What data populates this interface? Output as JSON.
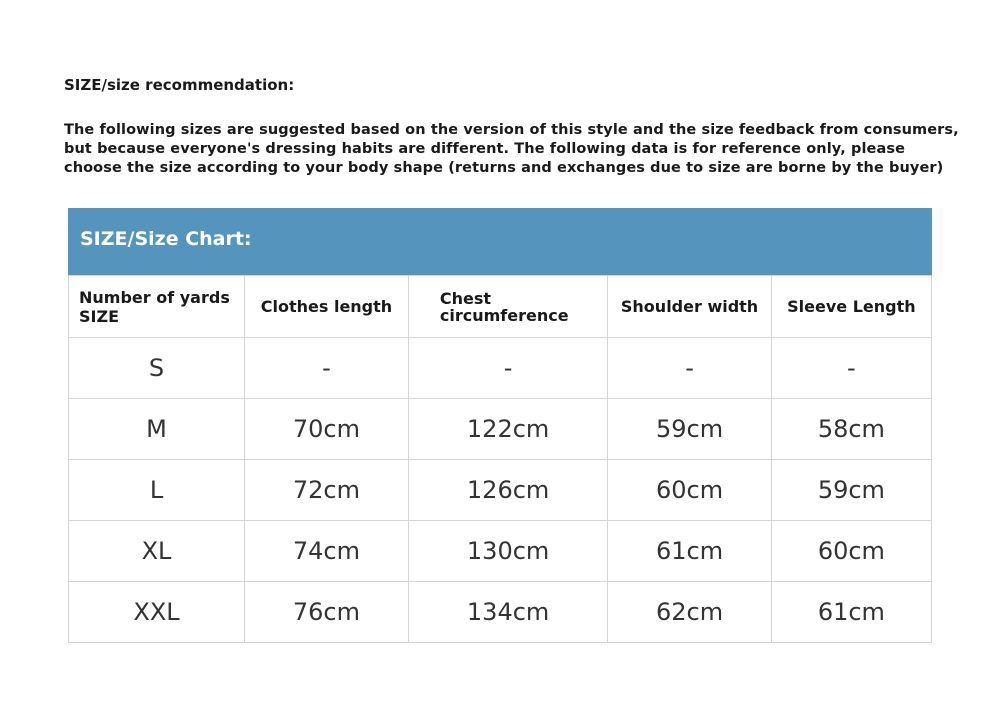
{
  "heading": "SIZE/size recommendation:",
  "paragraph": "The following sizes are suggested based on the version of this style and the size feedback from consumers, but because everyone's dressing habits are different. The following data is for reference only, please choose the size according to your body shape (returns and exchanges due to size are borne by the buyer)",
  "table": {
    "title": "SIZE/Size Chart:",
    "header_color": "#5595bd",
    "columns": [
      "Number of yards SIZE",
      "Clothes length",
      "Chest circumference",
      "Shoulder width",
      "Sleeve Length"
    ],
    "rows": [
      [
        "S",
        "-",
        "-",
        "-",
        "-"
      ],
      [
        "M",
        "70cm",
        "122cm",
        "59cm",
        "58cm"
      ],
      [
        "L",
        "72cm",
        "126cm",
        "60cm",
        "59cm"
      ],
      [
        "XL",
        "74cm",
        "130cm",
        "61cm",
        "60cm"
      ],
      [
        "XXL",
        "76cm",
        "134cm",
        "62cm",
        "61cm"
      ]
    ]
  }
}
